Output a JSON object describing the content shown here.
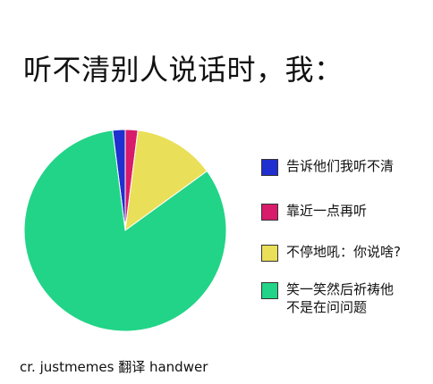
{
  "header": {
    "title": "听不清别人说话时，我："
  },
  "chart_data": {
    "type": "pie",
    "legend": "right",
    "slices": [
      {
        "label": "告诉他们我听不清",
        "value": 2,
        "color": "#1f2fd0"
      },
      {
        "label": "靠近一点再听",
        "value": 2,
        "color": "#d81b6a"
      },
      {
        "label": "不停地吼：你说啥?",
        "value": 13,
        "color": "#eadf58"
      },
      {
        "label": "笑一笑然后祈祷他\n不是在问问题",
        "value": 83,
        "color": "#22d487"
      }
    ]
  },
  "footer": {
    "credit": "cr. justmemes  翻译 handwer"
  }
}
